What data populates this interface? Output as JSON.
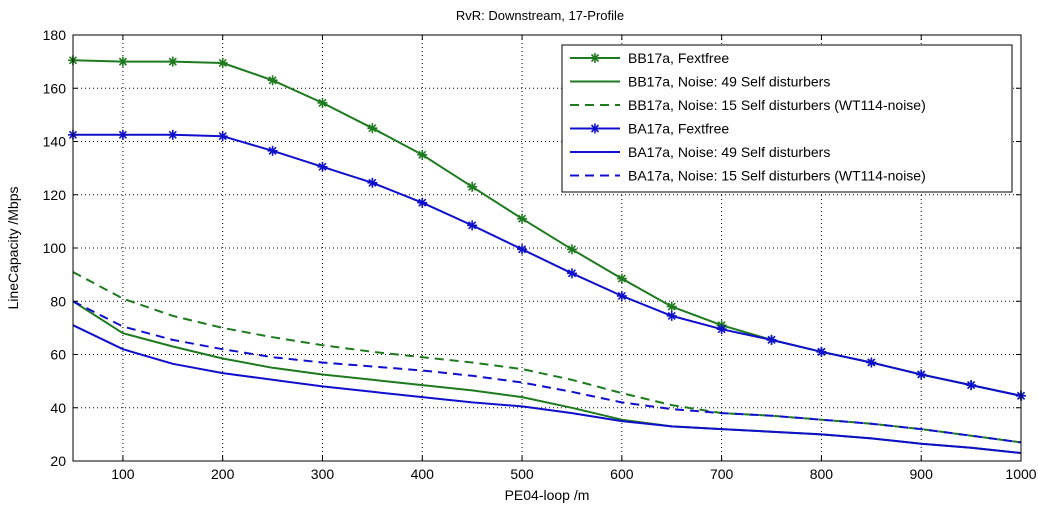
{
  "chart_data": {
    "type": "line",
    "title": "RvR: Downstream, 17-Profile",
    "xlabel": "PE04-loop /m",
    "ylabel": "LineCapacity /Mbps",
    "xlim": [
      50,
      1000
    ],
    "ylim": [
      20,
      180
    ],
    "xticks": [
      100,
      200,
      300,
      400,
      500,
      600,
      700,
      800,
      900,
      1000
    ],
    "yticks": [
      20,
      40,
      60,
      80,
      100,
      120,
      140,
      160,
      180
    ],
    "grid": true,
    "legend_position": "top-right",
    "series": [
      {
        "name": "BB17a, Fextfree",
        "color": "#1e7a1e",
        "style": "solid",
        "marker": "star",
        "x": [
          50,
          100,
          150,
          200,
          250,
          300,
          350,
          400,
          450,
          500,
          550,
          600,
          650,
          700,
          750,
          800,
          850,
          900,
          950,
          1000
        ],
        "y": [
          170.5,
          170,
          170,
          169.5,
          163,
          154.5,
          145,
          135,
          123,
          111,
          99.5,
          88.5,
          78,
          71,
          65.5,
          61,
          57,
          52.5,
          48.5,
          44.5
        ]
      },
      {
        "name": "BB17a, Noise: 49 Self disturbers",
        "color": "#1e7a1e",
        "style": "solid",
        "marker": "none",
        "x": [
          50,
          100,
          150,
          200,
          250,
          300,
          350,
          400,
          450,
          500,
          550,
          600,
          650,
          700,
          750,
          800,
          850,
          900,
          950,
          1000
        ],
        "y": [
          80,
          68,
          63,
          58.5,
          55,
          52.5,
          50.5,
          48.5,
          46.5,
          44,
          40,
          35.5,
          33,
          32,
          31,
          30,
          28.5,
          26.5,
          25,
          23
        ]
      },
      {
        "name": "BB17a, Noise: 15 Self disturbers (WT114-noise)",
        "color": "#1e7a1e",
        "style": "dashed",
        "marker": "none",
        "x": [
          50,
          100,
          150,
          200,
          250,
          300,
          350,
          400,
          450,
          500,
          550,
          600,
          650,
          700,
          750,
          800,
          850,
          900,
          950,
          1000
        ],
        "y": [
          91,
          81,
          74.5,
          70,
          66.5,
          63.5,
          61,
          59,
          57,
          54.5,
          50.5,
          45.5,
          41,
          38,
          37,
          35.5,
          34,
          32,
          29.5,
          27
        ]
      },
      {
        "name": "BA17a, Fextfree",
        "color": "#1010cc",
        "style": "solid",
        "marker": "star",
        "x": [
          50,
          100,
          150,
          200,
          250,
          300,
          350,
          400,
          450,
          500,
          550,
          600,
          650,
          700,
          750,
          800,
          850,
          900,
          950,
          1000
        ],
        "y": [
          142.5,
          142.5,
          142.5,
          142,
          136.5,
          130.5,
          124.5,
          117,
          108.5,
          99.5,
          90.5,
          82,
          74.5,
          69.5,
          65.5,
          61,
          57,
          52.5,
          48.5,
          44.5
        ]
      },
      {
        "name": "BA17a, Noise: 49 Self disturbers",
        "color": "#1010cc",
        "style": "solid",
        "marker": "none",
        "x": [
          50,
          100,
          150,
          200,
          250,
          300,
          350,
          400,
          450,
          500,
          550,
          600,
          650,
          700,
          750,
          800,
          850,
          900,
          950,
          1000
        ],
        "y": [
          71,
          62,
          56.5,
          53,
          50.5,
          48,
          46,
          44,
          42,
          40.5,
          38,
          35,
          33,
          32,
          31,
          30,
          28.5,
          26.5,
          25,
          23
        ]
      },
      {
        "name": "BA17a, Noise: 15 Self disturbers (WT114-noise)",
        "color": "#1010cc",
        "style": "dashed",
        "marker": "none",
        "x": [
          50,
          100,
          150,
          200,
          250,
          300,
          350,
          400,
          450,
          500,
          550,
          600,
          650,
          700,
          750,
          800,
          850,
          900,
          950,
          1000
        ],
        "y": [
          80,
          70.5,
          65.5,
          62,
          59,
          57,
          55.5,
          54,
          52,
          49.5,
          46,
          42,
          39.5,
          38,
          37,
          35.5,
          34,
          32,
          29.5,
          27
        ]
      }
    ]
  }
}
